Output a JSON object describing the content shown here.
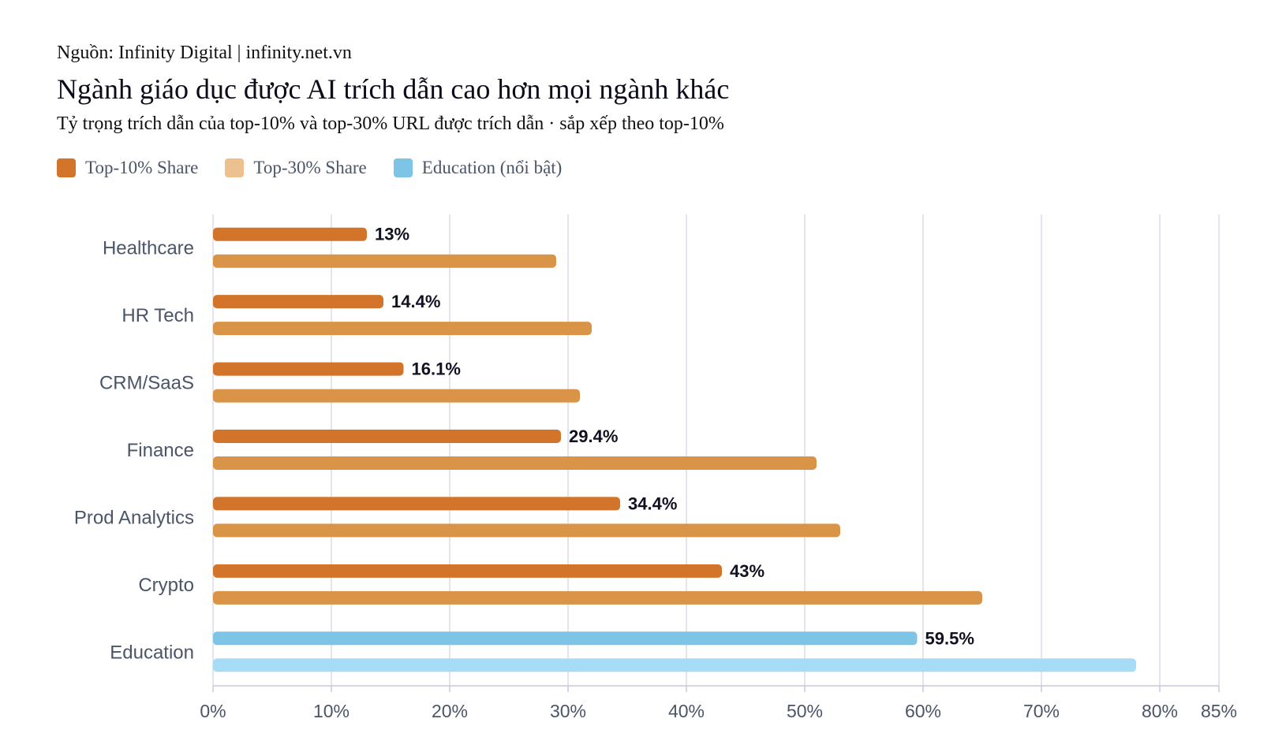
{
  "header": {
    "source": "Nguồn: Infinity Digital | infinity.net.vn",
    "title": "Ngành giáo dục được AI trích dẫn cao hơn mọi ngành khác",
    "subtitle": "Tỷ trọng trích dẫn của top-10% và top-30% URL được trích dẫn · sắp xếp theo top-10%"
  },
  "legend": [
    {
      "label": "Top-10% Share",
      "color": "#d2752a"
    },
    {
      "label": "Top-30% Share",
      "color": "#ecc08f"
    },
    {
      "label": "Education (nổi bật)",
      "color": "#7ec4e6"
    }
  ],
  "colors": {
    "top10": "#d2752a",
    "top30": "#d99447",
    "highlight_top10": "#7ec4e6",
    "highlight_top30": "#a6dcf5",
    "grid": "#dcdcea",
    "axis": "#c8c8d8"
  },
  "chart_data": {
    "type": "bar",
    "orientation": "horizontal",
    "categories": [
      "Healthcare",
      "HR Tech",
      "CRM/SaaS",
      "Finance",
      "Prod Analytics",
      "Crypto",
      "Education"
    ],
    "series": [
      {
        "name": "Top-10% Share",
        "values": [
          13,
          14.4,
          16.1,
          29.4,
          34.4,
          43,
          59.5
        ]
      },
      {
        "name": "Top-30% Share",
        "values": [
          29,
          32,
          31,
          51,
          53,
          65,
          78
        ]
      }
    ],
    "value_labels": [
      "13%",
      "14.4%",
      "16.1%",
      "29.4%",
      "34.4%",
      "43%",
      "59.5%"
    ],
    "highlight_category": "Education",
    "xlim": [
      0,
      85
    ],
    "xticks": [
      0,
      10,
      20,
      30,
      40,
      50,
      60,
      70,
      80,
      85
    ],
    "xtick_labels": [
      "0%",
      "10%",
      "20%",
      "30%",
      "40%",
      "50%",
      "60%",
      "70%",
      "80%",
      "85%"
    ],
    "xlabel": "",
    "grid": true,
    "legend_position": "top-left"
  }
}
